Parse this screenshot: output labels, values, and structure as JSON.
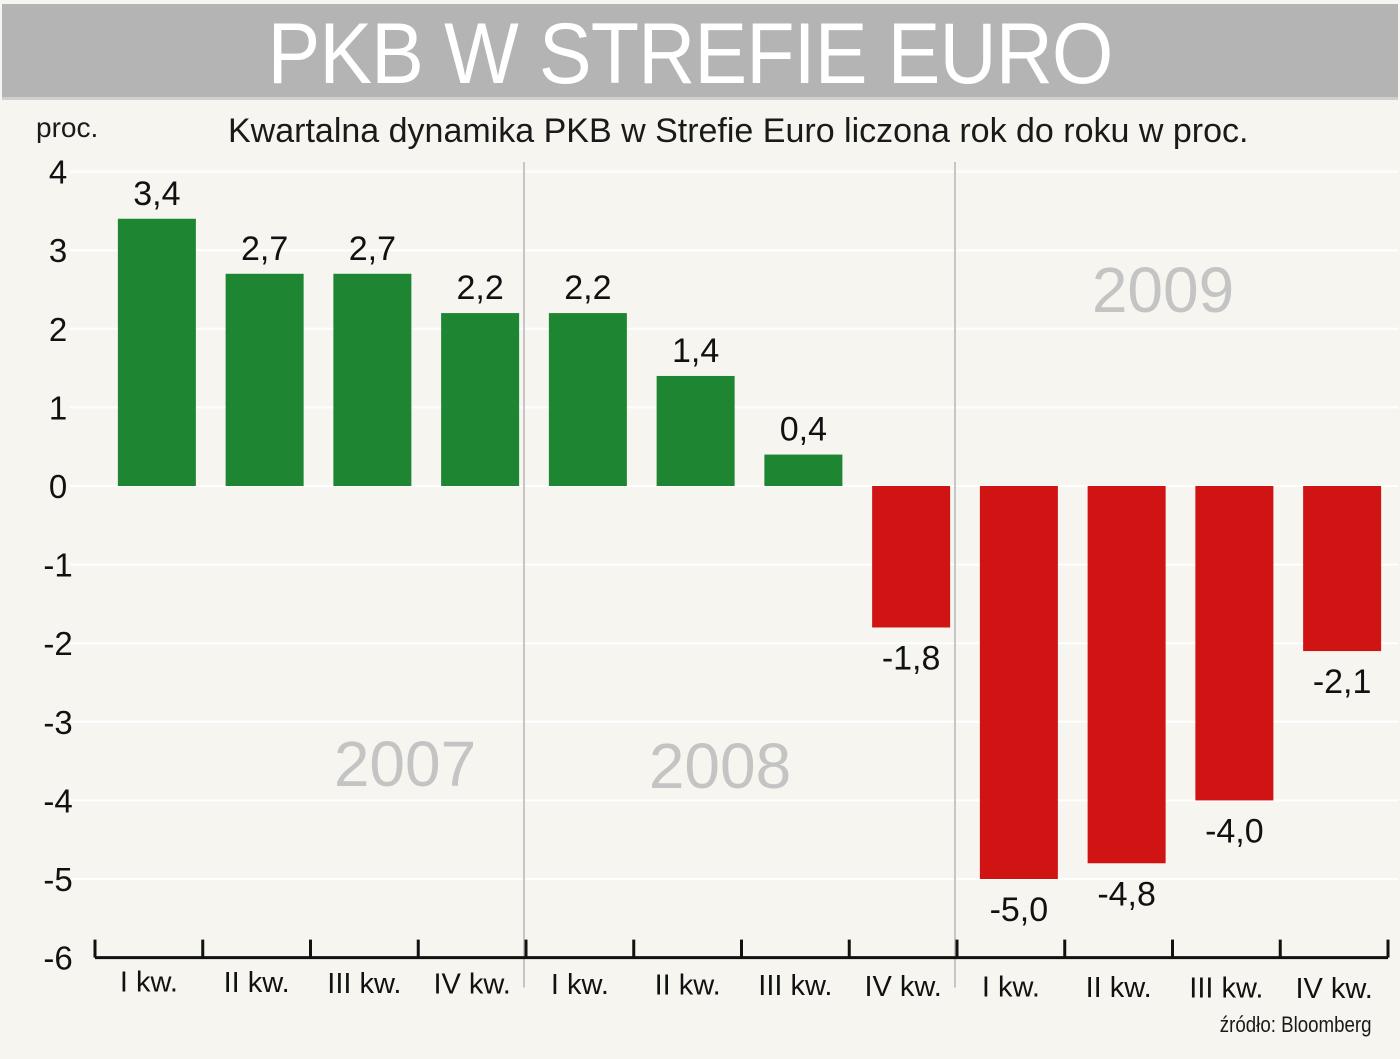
{
  "header": {
    "title": "PKB W STREFIE EURO"
  },
  "chart_data": {
    "type": "bar",
    "title": "PKB W STREFIE EURO",
    "subtitle": "Kwartalna dynamika PKB w Strefie Euro liczona rok do roku w proc.",
    "ylabel": "proc.",
    "ylim": [
      -6,
      4
    ],
    "yticks": [
      4,
      3,
      2,
      1,
      0,
      -1,
      -2,
      -3,
      -4,
      -5,
      -6
    ],
    "grid": true,
    "categories": [
      "I kw.",
      "II kw.",
      "III kw.",
      "IV kw.",
      "I kw.",
      "II kw.",
      "III kw.",
      "IV kw.",
      "I kw.",
      "II kw.",
      "III kw.",
      "IV kw."
    ],
    "years": [
      "2007",
      "2008",
      "2009"
    ],
    "values": [
      3.4,
      2.7,
      2.7,
      2.2,
      2.2,
      1.4,
      0.4,
      -1.8,
      -5.0,
      -4.8,
      -4.0,
      -2.1
    ],
    "value_labels": [
      "3,4",
      "2,7",
      "2,7",
      "2,2",
      "2,2",
      "1,4",
      "0,4",
      "-1,8",
      "-5,0",
      "-4,8",
      "-4,0",
      "-2,1"
    ],
    "colors": {
      "positive": "#1e8533",
      "negative": "#d01414",
      "grid": "#ffffff",
      "year_text": "#c4c4c4"
    }
  },
  "footer": {
    "source": "źródło: Bloomberg"
  }
}
